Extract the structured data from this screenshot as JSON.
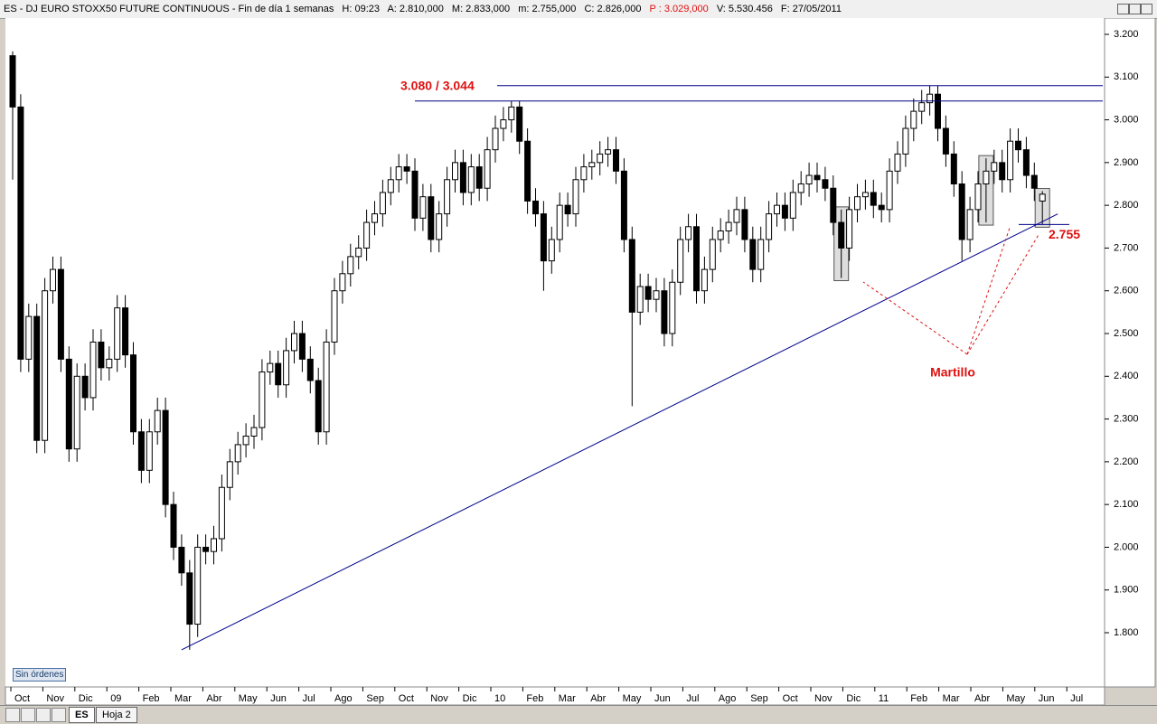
{
  "header": {
    "symbol": "ES - DJ EURO STOXX50 FUTURE CONTINUOUS - Fin de día 1 semanas",
    "hour": "H: 09:23",
    "open": "A: 2.810,000",
    "high": "M: 2.833,000",
    "low": "m: 2.755,000",
    "close": "C: 2.826,000",
    "prev": "P : 3.029,000",
    "volume": "V: 5.530.456",
    "date": "F: 27/05/2011"
  },
  "chart_data": {
    "type": "candlestick",
    "series": [
      {
        "name": "ES",
        "ohlc": [
          [
            3.15,
            3.16,
            2.86,
            3.03
          ],
          [
            3.03,
            3.06,
            2.41,
            2.44
          ],
          [
            2.44,
            2.57,
            2.41,
            2.54
          ],
          [
            2.54,
            2.57,
            2.22,
            2.25
          ],
          [
            2.25,
            2.63,
            2.22,
            2.6
          ],
          [
            2.6,
            2.68,
            2.57,
            2.65
          ],
          [
            2.65,
            2.68,
            2.41,
            2.44
          ],
          [
            2.44,
            2.47,
            2.2,
            2.23
          ],
          [
            2.23,
            2.43,
            2.2,
            2.4
          ],
          [
            2.4,
            2.43,
            2.32,
            2.35
          ],
          [
            2.35,
            2.51,
            2.32,
            2.48
          ],
          [
            2.48,
            2.51,
            2.39,
            2.42
          ],
          [
            2.42,
            2.47,
            2.39,
            2.44
          ],
          [
            2.44,
            2.59,
            2.41,
            2.56
          ],
          [
            2.56,
            2.59,
            2.42,
            2.45
          ],
          [
            2.45,
            2.48,
            2.24,
            2.27
          ],
          [
            2.27,
            2.3,
            2.15,
            2.18
          ],
          [
            2.18,
            2.3,
            2.15,
            2.27
          ],
          [
            2.27,
            2.35,
            2.24,
            2.32
          ],
          [
            2.32,
            2.35,
            2.07,
            2.1
          ],
          [
            2.1,
            2.13,
            1.97,
            2.0
          ],
          [
            2.0,
            2.03,
            1.91,
            1.94
          ],
          [
            1.94,
            1.97,
            1.76,
            1.82
          ],
          [
            1.82,
            2.03,
            1.79,
            2.0
          ],
          [
            2.0,
            2.03,
            1.96,
            1.99
          ],
          [
            1.99,
            2.05,
            1.96,
            2.02
          ],
          [
            2.02,
            2.17,
            1.99,
            2.14
          ],
          [
            2.14,
            2.23,
            2.11,
            2.2
          ],
          [
            2.2,
            2.27,
            2.17,
            2.24
          ],
          [
            2.24,
            2.29,
            2.21,
            2.26
          ],
          [
            2.26,
            2.31,
            2.23,
            2.28
          ],
          [
            2.28,
            2.44,
            2.25,
            2.41
          ],
          [
            2.41,
            2.46,
            2.38,
            2.43
          ],
          [
            2.43,
            2.46,
            2.35,
            2.38
          ],
          [
            2.38,
            2.49,
            2.35,
            2.46
          ],
          [
            2.46,
            2.53,
            2.43,
            2.5
          ],
          [
            2.5,
            2.53,
            2.41,
            2.44
          ],
          [
            2.44,
            2.47,
            2.36,
            2.39
          ],
          [
            2.39,
            2.42,
            2.24,
            2.27
          ],
          [
            2.27,
            2.51,
            2.24,
            2.48
          ],
          [
            2.48,
            2.63,
            2.45,
            2.6
          ],
          [
            2.6,
            2.67,
            2.57,
            2.64
          ],
          [
            2.64,
            2.71,
            2.61,
            2.68
          ],
          [
            2.68,
            2.73,
            2.65,
            2.7
          ],
          [
            2.7,
            2.79,
            2.67,
            2.76
          ],
          [
            2.76,
            2.81,
            2.73,
            2.78
          ],
          [
            2.78,
            2.86,
            2.75,
            2.83
          ],
          [
            2.83,
            2.89,
            2.8,
            2.86
          ],
          [
            2.86,
            2.92,
            2.83,
            2.89
          ],
          [
            2.89,
            2.92,
            2.85,
            2.88
          ],
          [
            2.88,
            2.91,
            2.74,
            2.77
          ],
          [
            2.77,
            2.85,
            2.74,
            2.82
          ],
          [
            2.82,
            2.85,
            2.69,
            2.72
          ],
          [
            2.72,
            2.81,
            2.69,
            2.78
          ],
          [
            2.78,
            2.89,
            2.75,
            2.86
          ],
          [
            2.86,
            2.93,
            2.83,
            2.9
          ],
          [
            2.9,
            2.93,
            2.8,
            2.83
          ],
          [
            2.83,
            2.92,
            2.8,
            2.89
          ],
          [
            2.89,
            2.92,
            2.81,
            2.84
          ],
          [
            2.84,
            2.96,
            2.81,
            2.93
          ],
          [
            2.93,
            3.01,
            2.9,
            2.98
          ],
          [
            2.98,
            3.03,
            2.95,
            3.0
          ],
          [
            3.0,
            3.044,
            2.97,
            3.03
          ],
          [
            3.03,
            3.044,
            2.92,
            2.95
          ],
          [
            2.95,
            2.98,
            2.78,
            2.81
          ],
          [
            2.81,
            2.84,
            2.75,
            2.78
          ],
          [
            2.78,
            2.81,
            2.6,
            2.67
          ],
          [
            2.67,
            2.75,
            2.64,
            2.72
          ],
          [
            2.72,
            2.83,
            2.69,
            2.8
          ],
          [
            2.8,
            2.83,
            2.75,
            2.78
          ],
          [
            2.78,
            2.89,
            2.75,
            2.86
          ],
          [
            2.86,
            2.92,
            2.83,
            2.89
          ],
          [
            2.89,
            2.93,
            2.86,
            2.9
          ],
          [
            2.9,
            2.95,
            2.87,
            2.92
          ],
          [
            2.92,
            2.96,
            2.89,
            2.93
          ],
          [
            2.93,
            2.96,
            2.85,
            2.88
          ],
          [
            2.88,
            2.91,
            2.69,
            2.72
          ],
          [
            2.72,
            2.75,
            2.33,
            2.55
          ],
          [
            2.55,
            2.64,
            2.52,
            2.61
          ],
          [
            2.61,
            2.64,
            2.55,
            2.58
          ],
          [
            2.58,
            2.63,
            2.55,
            2.6
          ],
          [
            2.6,
            2.63,
            2.47,
            2.5
          ],
          [
            2.5,
            2.65,
            2.47,
            2.62
          ],
          [
            2.62,
            2.75,
            2.59,
            2.72
          ],
          [
            2.72,
            2.78,
            2.69,
            2.75
          ],
          [
            2.75,
            2.78,
            2.57,
            2.6
          ],
          [
            2.6,
            2.68,
            2.57,
            2.65
          ],
          [
            2.65,
            2.75,
            2.62,
            2.72
          ],
          [
            2.72,
            2.77,
            2.69,
            2.74
          ],
          [
            2.74,
            2.79,
            2.71,
            2.76
          ],
          [
            2.76,
            2.82,
            2.73,
            2.79
          ],
          [
            2.79,
            2.82,
            2.69,
            2.72
          ],
          [
            2.72,
            2.75,
            2.62,
            2.65
          ],
          [
            2.65,
            2.75,
            2.62,
            2.72
          ],
          [
            2.72,
            2.81,
            2.69,
            2.78
          ],
          [
            2.78,
            2.83,
            2.75,
            2.8
          ],
          [
            2.8,
            2.83,
            2.74,
            2.77
          ],
          [
            2.77,
            2.86,
            2.74,
            2.83
          ],
          [
            2.83,
            2.88,
            2.8,
            2.85
          ],
          [
            2.85,
            2.9,
            2.82,
            2.87
          ],
          [
            2.87,
            2.9,
            2.83,
            2.86
          ],
          [
            2.86,
            2.89,
            2.81,
            2.84
          ],
          [
            2.84,
            2.87,
            2.73,
            2.76
          ],
          [
            2.76,
            2.79,
            2.63,
            2.7
          ],
          [
            2.7,
            2.82,
            2.67,
            2.79
          ],
          [
            2.79,
            2.85,
            2.76,
            2.82
          ],
          [
            2.82,
            2.86,
            2.79,
            2.83
          ],
          [
            2.83,
            2.86,
            2.77,
            2.8
          ],
          [
            2.8,
            2.83,
            2.76,
            2.79
          ],
          [
            2.79,
            2.91,
            2.76,
            2.88
          ],
          [
            2.88,
            2.95,
            2.85,
            2.92
          ],
          [
            2.92,
            3.01,
            2.89,
            2.98
          ],
          [
            2.98,
            3.05,
            2.95,
            3.02
          ],
          [
            3.02,
            3.07,
            2.99,
            3.04
          ],
          [
            3.04,
            3.08,
            3.01,
            3.06
          ],
          [
            3.06,
            3.08,
            2.95,
            2.98
          ],
          [
            2.98,
            3.01,
            2.89,
            2.92
          ],
          [
            2.92,
            2.95,
            2.82,
            2.85
          ],
          [
            2.85,
            2.88,
            2.67,
            2.72
          ],
          [
            2.72,
            2.82,
            2.69,
            2.79
          ],
          [
            2.79,
            2.88,
            2.76,
            2.85
          ],
          [
            2.85,
            2.91,
            2.76,
            2.88
          ],
          [
            2.88,
            2.93,
            2.85,
            2.9
          ],
          [
            2.9,
            2.93,
            2.83,
            2.86
          ],
          [
            2.86,
            2.98,
            2.83,
            2.95
          ],
          [
            2.95,
            2.98,
            2.9,
            2.93
          ],
          [
            2.93,
            2.96,
            2.84,
            2.87
          ],
          [
            2.87,
            2.9,
            2.81,
            2.84
          ],
          [
            2.81,
            2.833,
            2.755,
            2.826
          ]
        ]
      }
    ],
    "month_labels": [
      "Oct",
      "Nov",
      "Dic",
      "09",
      "Feb",
      "Mar",
      "Abr",
      "May",
      "Jun",
      "Jul",
      "Ago",
      "Sep",
      "Oct",
      "Nov",
      "Dic",
      "10",
      "Feb",
      "Mar",
      "Abr",
      "May",
      "Jun",
      "Jul",
      "Ago",
      "Sep",
      "Oct",
      "Nov",
      "Dic",
      "11",
      "Feb",
      "Mar",
      "Abr",
      "May",
      "Jun",
      "Jul"
    ],
    "ylim": [
      1.7,
      3.23
    ],
    "yticks": [
      {
        "value": 1.8,
        "label": "1.800"
      },
      {
        "value": 1.9,
        "label": "1.900"
      },
      {
        "value": 2.0,
        "label": "2.000"
      },
      {
        "value": 2.1,
        "label": "2.100"
      },
      {
        "value": 2.2,
        "label": "2.200"
      },
      {
        "value": 2.3,
        "label": "2.300"
      },
      {
        "value": 2.4,
        "label": "2.400"
      },
      {
        "value": 2.5,
        "label": "2.500"
      },
      {
        "value": 2.6,
        "label": "2.600"
      },
      {
        "value": 2.7,
        "label": "2.700"
      },
      {
        "value": 2.8,
        "label": "2.800"
      },
      {
        "value": 2.9,
        "label": "2.900"
      },
      {
        "value": 3.0,
        "label": "3.000"
      },
      {
        "value": 3.1,
        "label": "3.100"
      },
      {
        "value": 3.2,
        "label": "3.200"
      }
    ],
    "resistance_lines": [
      3.08,
      3.044
    ],
    "resistance_label": "3.080 / 3.044",
    "support_line": 2.755,
    "support_label": "2.755",
    "trendline": [
      1.76,
      2.765
    ],
    "annotation": "Martillo",
    "up_color": "#ffffff",
    "down_color": "#000000",
    "line_color": "#00008b",
    "annotation_color": "#e01010"
  },
  "footer": {
    "orders": "Sin órdenes",
    "tabs": [
      "ES",
      "Hoja 2"
    ]
  }
}
